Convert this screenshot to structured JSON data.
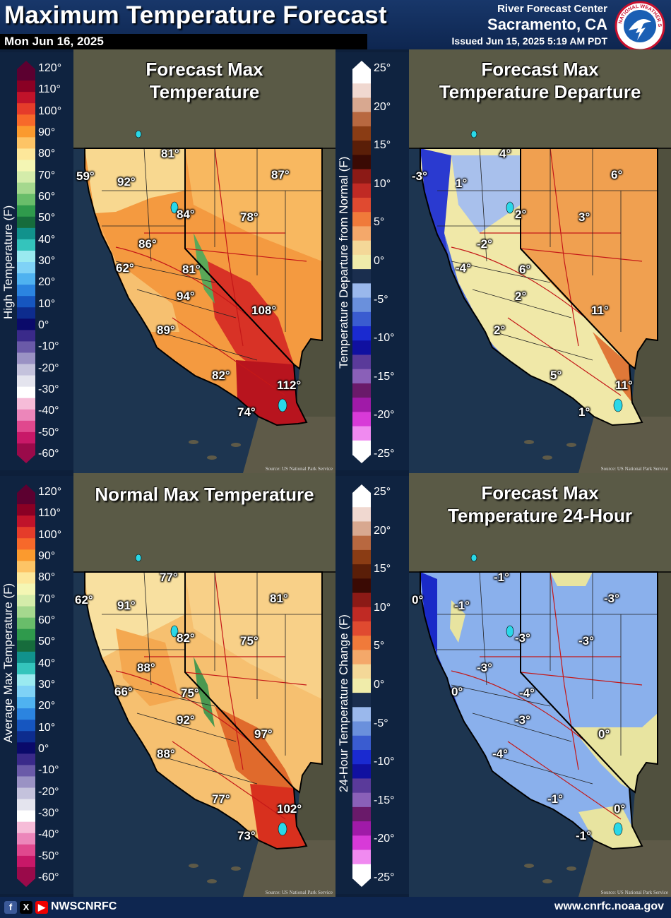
{
  "header": {
    "title": "Maximum Temperature Forecast",
    "date": "Mon Jun 16, 2025",
    "rfc": "River Forecast Center",
    "city": "Sacramento, CA",
    "issued": "Issued Jun 15, 2025 5:19 AM PDT",
    "logo_text": "NATIONAL WEATHER SERVICE"
  },
  "legends": {
    "temperature_top": {
      "label": "High Temperature (F)",
      "ticks": [
        "120°",
        "110°",
        "100°",
        "90°",
        "80°",
        "70°",
        "60°",
        "50°",
        "40°",
        "30°",
        "20°",
        "10°",
        "0°",
        "-10°",
        "-20°",
        "-30°",
        "-40°",
        "-50°",
        "-60°"
      ]
    },
    "temperature_bottom": {
      "label": "Average Max Temperature (F)",
      "ticks": [
        "120°",
        "110°",
        "100°",
        "90°",
        "80°",
        "70°",
        "60°",
        "50°",
        "40°",
        "30°",
        "20°",
        "10°",
        "0°",
        "-10°",
        "-20°",
        "-30°",
        "-40°",
        "-50°",
        "-60°"
      ]
    },
    "departure": {
      "label": "Temperature Departure from Normal (F)",
      "ticks": [
        "25°",
        "20°",
        "15°",
        "10°",
        "5°",
        "0°",
        "-5°",
        "-10°",
        "-15°",
        "-20°",
        "-25°"
      ]
    },
    "change": {
      "label": "24-Hour Temperature Change (F)",
      "ticks": [
        "25°",
        "20°",
        "15°",
        "10°",
        "5°",
        "0°",
        "-5°",
        "-10°",
        "-15°",
        "-20°",
        "-25°"
      ]
    }
  },
  "panels": {
    "forecast_max": {
      "title": [
        "Forecast Max",
        "Temperature"
      ],
      "labels": [
        "81°",
        "59°",
        "92°",
        "87°",
        "84°",
        "78°",
        "86°",
        "62°",
        "81°",
        "94°",
        "108°",
        "89°",
        "82°",
        "112°",
        "74°"
      ]
    },
    "departure": {
      "title": [
        "Forecast Max",
        "Temperature Departure"
      ],
      "labels": [
        "4°",
        "-3°",
        "1°",
        "6°",
        "2°",
        "3°",
        "-2°",
        "-4°",
        "6°",
        "2°",
        "11°",
        "2°",
        "5°",
        "11°",
        "1°"
      ]
    },
    "normal_max": {
      "title": [
        "Normal Max Temperature"
      ],
      "labels": [
        "77°",
        "62°",
        "91°",
        "81°",
        "82°",
        "75°",
        "88°",
        "66°",
        "75°",
        "92°",
        "97°",
        "88°",
        "77°",
        "102°",
        "73°"
      ]
    },
    "change_24h": {
      "title": [
        "Forecast Max",
        "Temperature 24-Hour"
      ],
      "labels": [
        "-1°",
        "0°",
        "-1°",
        "-3°",
        "-3°",
        "-3°",
        "-3°",
        "0°",
        "-4°",
        "-3°",
        "0°",
        "-4°",
        "-1°",
        "0°",
        "-1°"
      ]
    }
  },
  "source_note": "Source: US National Park Service",
  "footer": {
    "handle": "NWSCNRFC",
    "website": "www.cnrfc.noaa.gov",
    "icons": [
      "facebook-icon",
      "x-icon",
      "youtube-icon"
    ]
  },
  "colors": {
    "header_bg": "#18376a",
    "ocean": "#1d3550",
    "land": "#5a5a46"
  }
}
